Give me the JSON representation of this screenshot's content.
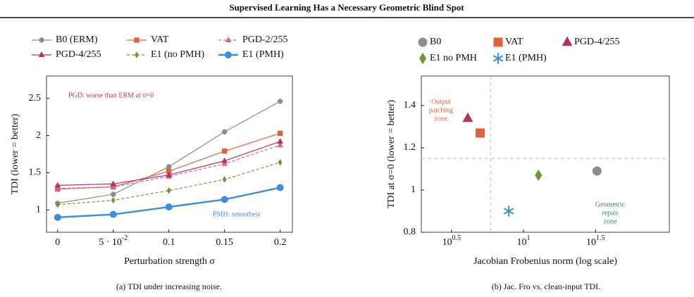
{
  "title": "Supervised Learning Has a Necessary Geometric Blind Spot",
  "chart_data": [
    {
      "type": "line",
      "caption": "(a) TDI under increasing noise.",
      "x_label": "Perturbation strength σ",
      "y_label": "TDI (lower = better)",
      "x": [
        0,
        0.05,
        0.1,
        0.15,
        0.2
      ],
      "xlim": [
        -0.01,
        0.211
      ],
      "ylim": [
        0.7,
        2.8
      ],
      "xticks": [
        0,
        {
          "value": 0.05,
          "label": "5 · 10^-2"
        },
        0.1,
        0.15,
        0.2
      ],
      "yticks": [
        1,
        1.5,
        2,
        2.5
      ],
      "grid": false,
      "series": [
        {
          "name": "B0 (ERM)",
          "color": "#8c8c8c",
          "marker": "circle",
          "dashed": false,
          "values": [
            1.09,
            1.21,
            1.58,
            2.05,
            2.46
          ]
        },
        {
          "name": "VAT",
          "color": "#e0633a",
          "marker": "square",
          "dashed": false,
          "values": [
            1.28,
            1.31,
            1.52,
            1.79,
            2.03
          ]
        },
        {
          "name": "PGD-2/255",
          "color": "#d8628a",
          "marker": "triangle",
          "dashed": true,
          "values": [
            1.29,
            1.31,
            1.45,
            1.62,
            1.87
          ]
        },
        {
          "name": "PGD-4/255",
          "color": "#b8305e",
          "marker": "triangle",
          "dashed": false,
          "values": [
            1.33,
            1.35,
            1.47,
            1.66,
            1.92
          ]
        },
        {
          "name": "E1 (no PMH)",
          "color": "#6b9a2e",
          "marker": "diamond",
          "dashed": true,
          "values": [
            1.07,
            1.13,
            1.26,
            1.41,
            1.64
          ]
        },
        {
          "name": "E1 (PMH)",
          "color": "#3a8ee0",
          "marker": "circle",
          "dashed": false,
          "thick": true,
          "values": [
            0.9,
            0.94,
            1.04,
            1.14,
            1.3
          ]
        }
      ],
      "annotations": [
        {
          "text": [
            "PGD: worse than ERM at σ=0"
          ],
          "color": "#b8305e"
        },
        {
          "text": [
            "PMH: smoothest"
          ],
          "color": "#3a8ee0"
        }
      ]
    },
    {
      "type": "scatter",
      "caption": "(b) Jac. Fro vs. clean-input TDI.",
      "x_label": "Jacobian Frobenius norm (log scale)",
      "y_label": "TDI at σ=0 (lower = better)",
      "xscale": "log",
      "xlim": [
        1.95,
        103
      ],
      "ylim": [
        0.8,
        1.54
      ],
      "xticks": [
        {
          "value": 3.1622776601683795,
          "label": "10^0.5"
        },
        {
          "value": 10,
          "label": "10^1"
        },
        {
          "value": 31.622776601683793,
          "label": "10^1.5"
        }
      ],
      "yticks": [
        0.8,
        1,
        1.2,
        1.4
      ],
      "grid": false,
      "reference_lines": {
        "x": 5.9,
        "y": 1.15
      },
      "series": [
        {
          "name": "B0",
          "color": "#8c8c8c",
          "marker": "circle",
          "x": [
            32.4
          ],
          "values": [
            1.09
          ]
        },
        {
          "name": "VAT",
          "color": "#e0633a",
          "marker": "square",
          "x": [
            5.0
          ],
          "values": [
            1.27
          ]
        },
        {
          "name": "PGD-4/255",
          "color": "#b8305e",
          "marker": "triangle",
          "x": [
            4.1
          ],
          "values": [
            1.34
          ]
        },
        {
          "name": "E1 no PMH",
          "color": "#6b9a2e",
          "marker": "diamond",
          "x": [
            12.7
          ],
          "values": [
            1.07
          ]
        },
        {
          "name": "E1 (PMH)",
          "color": "#3a8ee0",
          "marker": "star",
          "x": [
            7.9
          ],
          "values": [
            0.9
          ]
        }
      ],
      "annotations": [
        {
          "text": [
            "Output",
            "patching",
            "zone"
          ],
          "color": "#e0633a"
        },
        {
          "text": [
            "Geometric",
            "repair",
            "zone"
          ],
          "color": "#2e8a5a"
        }
      ]
    }
  ]
}
